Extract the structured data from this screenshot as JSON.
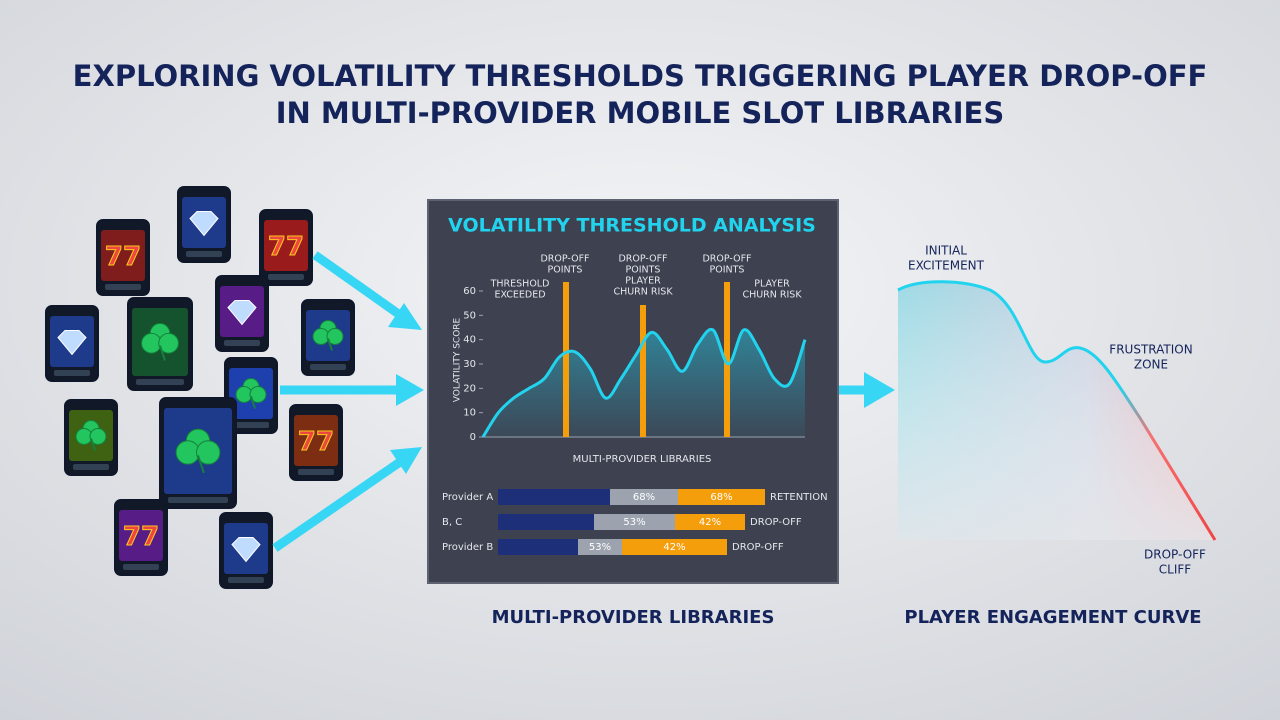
{
  "title": {
    "line1": "EXPLORING VOLATILITY THRESHOLDS TRIGGERING PLAYER DROP-OFF",
    "line2": "IN MULTI-PROVIDER MOBILE SLOT LIBRARIES"
  },
  "libraries": {
    "caption": "MULTI-PROVIDER LIBRARIES"
  },
  "chart_data": {
    "type": "line",
    "title": "VOLATILITY THRESHOLD ANALYSIS",
    "x_label": "MULTI-PROVIDER LIBRARIES",
    "y_label": "VOLATILITY SCORE",
    "ylim": [
      0,
      60
    ],
    "yticks": [
      0,
      10,
      20,
      30,
      40,
      50,
      60
    ],
    "color": "#22d3ee",
    "values": [
      0,
      10,
      16,
      20,
      24,
      33,
      35,
      28,
      16,
      24,
      34,
      43,
      36,
      27,
      38,
      44,
      30,
      44,
      36,
      24,
      22,
      40
    ],
    "annotations": [
      {
        "lines": [
          "DROP-OFF",
          "POINTS"
        ]
      },
      {
        "lines": [
          "THRESHOLD",
          "EXCEEDED"
        ]
      },
      {
        "lines": [
          "DROP-OFF",
          "POINTS",
          "PLAYER",
          "CHURN RISK"
        ]
      },
      {
        "lines": [
          "DROP-OFF",
          "POINTS"
        ]
      },
      {
        "lines": [
          "PLAYER",
          "CHURN RISK"
        ]
      }
    ]
  },
  "breakdown": {
    "rows": [
      {
        "label": "Provider A",
        "segments": [
          "68%",
          "68%"
        ],
        "status": "RETENTION"
      },
      {
        "label": "B, C",
        "segments": [
          "53%",
          "42%"
        ],
        "status": "DROP-OFF"
      },
      {
        "label": "Provider B",
        "segments": [
          "53%",
          "42%"
        ],
        "status": "DROP-OFF"
      }
    ]
  },
  "engagement": {
    "caption": "PLAYER ENGAGEMENT CURVE",
    "labels": [
      {
        "lines": [
          "INITIAL",
          "EXCITEMENT"
        ]
      },
      {
        "lines": [
          "FRUSTRATION",
          "ZONE"
        ]
      },
      {
        "lines": [
          "DROP-OFF",
          "CLIFF"
        ]
      }
    ]
  }
}
